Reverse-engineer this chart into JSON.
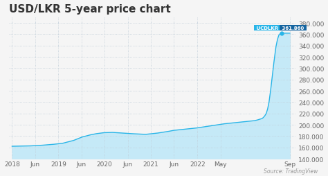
{
  "title": "USD/LKR 5-year price chart",
  "source_text": "Source: TradingView",
  "line_color": "#29b5e8",
  "fill_color": "#c5e9f7",
  "background_color": "#f5f5f5",
  "plot_bg_color": "#f5f5f5",
  "grid_color": "#c0cdd8",
  "ylim": [
    140000,
    390000
  ],
  "yticks": [
    140000,
    160000,
    180000,
    200000,
    220000,
    240000,
    260000,
    280000,
    300000,
    320000,
    340000,
    360000,
    380000
  ],
  "ytick_labels": [
    "140.000",
    "160.000",
    "180.000",
    "200.000",
    "220.000",
    "240.000",
    "260.000",
    "280.000",
    "300.000",
    "320.000",
    "340.000",
    "360.000",
    "380.000"
  ],
  "xtick_labels": [
    "2018",
    "Jun",
    "2019",
    "Jun",
    "2020",
    "Jun",
    "2021",
    "Jun",
    "2022",
    "May",
    "Sep"
  ],
  "xtick_positions": [
    0.0,
    0.083,
    0.167,
    0.25,
    0.333,
    0.417,
    0.5,
    0.583,
    0.667,
    0.75,
    1.0
  ],
  "annotation_label": "UCDLKR",
  "annotation_value": "361.860",
  "annotation_bg": "#29b5e8",
  "annotation_text_color": "#ffffff",
  "annotation_value_bg": "#1565a0",
  "title_fontsize": 11,
  "tick_fontsize": 6.5,
  "key_x": [
    0.0,
    0.06,
    0.1,
    0.14,
    0.18,
    0.22,
    0.25,
    0.28,
    0.3,
    0.33,
    0.36,
    0.39,
    0.42,
    0.44,
    0.46,
    0.48,
    0.5,
    0.52,
    0.54,
    0.56,
    0.58,
    0.6,
    0.62,
    0.64,
    0.66,
    0.68,
    0.7,
    0.72,
    0.74,
    0.76,
    0.78,
    0.8,
    0.82,
    0.84,
    0.86,
    0.87,
    0.88,
    0.89,
    0.9,
    0.905,
    0.91,
    0.915,
    0.92,
    0.925,
    0.93,
    0.935,
    0.94,
    0.945,
    0.95,
    0.955,
    0.96,
    0.965,
    0.97,
    0.98,
    1.0
  ],
  "key_y": [
    162000,
    162500,
    163500,
    165000,
    167000,
    172000,
    178000,
    182000,
    184000,
    186000,
    186500,
    185500,
    184500,
    184000,
    183500,
    183000,
    184000,
    185000,
    186500,
    188000,
    190000,
    191000,
    192000,
    193000,
    194000,
    195500,
    197000,
    198500,
    200000,
    201500,
    202500,
    203500,
    204500,
    205500,
    206500,
    207000,
    208000,
    209500,
    211000,
    213000,
    216000,
    220000,
    228000,
    240000,
    258000,
    278000,
    300000,
    320000,
    338000,
    350000,
    358000,
    361000,
    361860,
    361860,
    361860
  ]
}
